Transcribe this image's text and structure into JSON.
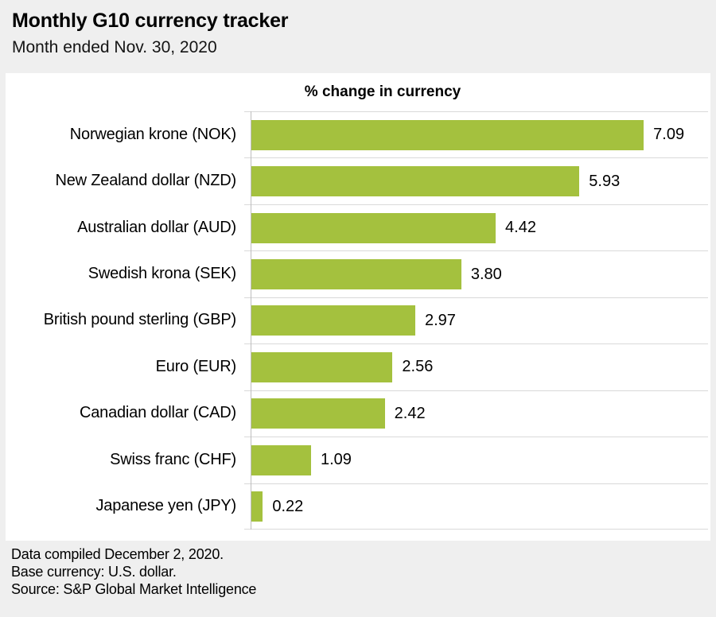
{
  "header": {
    "title": "Monthly G10 currency tracker",
    "subtitle": "Month ended Nov. 30, 2020"
  },
  "chart_data": {
    "type": "bar",
    "orientation": "horizontal",
    "title": "% change in currency",
    "categories": [
      "Norwegian krone (NOK)",
      "New Zealand dollar (NZD)",
      "Australian dollar (AUD)",
      "Swedish krona (SEK)",
      "British pound sterling (GBP)",
      "Euro (EUR)",
      "Canadian dollar (CAD)",
      "Swiss franc (CHF)",
      "Japanese yen (JPY)"
    ],
    "values": [
      7.09,
      5.93,
      4.42,
      3.8,
      2.97,
      2.56,
      2.42,
      1.09,
      0.22
    ],
    "value_labels": [
      "7.09",
      "5.93",
      "4.42",
      "3.80",
      "2.97",
      "2.56",
      "2.42",
      "1.09",
      "0.22"
    ],
    "xlim": [
      0,
      8.25
    ],
    "grid": true,
    "legend": "none",
    "bar_color": "#a4c13e",
    "gridline_color": "#d9d9d9",
    "axis_color": "#bdbdbd",
    "panel_color": "#ffffff",
    "page_background": "#efefef"
  },
  "footer": {
    "lines": [
      "Data compiled December 2, 2020.",
      "Base currency: U.S. dollar.",
      "Source: S&P Global Market Intelligence"
    ]
  }
}
